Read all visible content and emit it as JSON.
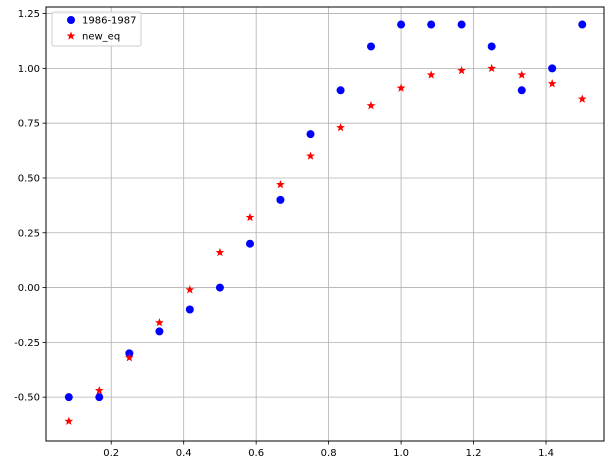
{
  "chart_data": {
    "type": "scatter",
    "title": "",
    "xlabel": "",
    "ylabel": "",
    "xlim": [
      0.02,
      1.56
    ],
    "ylim": [
      -0.7,
      1.28
    ],
    "x_ticks": [
      0.2,
      0.4,
      0.6,
      0.8,
      1.0,
      1.2,
      1.4
    ],
    "x_tick_labels": [
      "0.2",
      "0.4",
      "0.6",
      "0.8",
      "1.0",
      "1.2",
      "1.4"
    ],
    "y_ticks": [
      -0.5,
      -0.25,
      0.0,
      0.25,
      0.5,
      0.75,
      1.0,
      1.25
    ],
    "y_tick_labels": [
      "-0.50",
      "-0.25",
      "0.00",
      "0.25",
      "0.50",
      "0.75",
      "1.00",
      "1.25"
    ],
    "grid": true,
    "legend_position": "top-left",
    "series": [
      {
        "name": "1986-1987",
        "marker": "circle",
        "color": "#0000ff",
        "x": [
          0.083,
          0.167,
          0.25,
          0.333,
          0.417,
          0.5,
          0.583,
          0.667,
          0.75,
          0.833,
          0.917,
          1.0,
          1.083,
          1.167,
          1.25,
          1.333,
          1.417,
          1.5
        ],
        "y": [
          -0.5,
          -0.5,
          -0.3,
          -0.2,
          -0.1,
          0.0,
          0.2,
          0.4,
          0.7,
          0.9,
          1.1,
          1.2,
          1.2,
          1.2,
          1.1,
          0.9,
          1.0,
          1.2
        ]
      },
      {
        "name": "new_eq",
        "marker": "star",
        "color": "#ff0000",
        "x": [
          0.083,
          0.167,
          0.25,
          0.333,
          0.417,
          0.5,
          0.583,
          0.667,
          0.75,
          0.833,
          0.917,
          1.0,
          1.083,
          1.167,
          1.25,
          1.333,
          1.417,
          1.5
        ],
        "y": [
          -0.61,
          -0.47,
          -0.32,
          -0.16,
          -0.01,
          0.16,
          0.32,
          0.47,
          0.6,
          0.73,
          0.83,
          0.91,
          0.97,
          0.99,
          1.0,
          0.97,
          0.93,
          0.86
        ]
      }
    ]
  }
}
